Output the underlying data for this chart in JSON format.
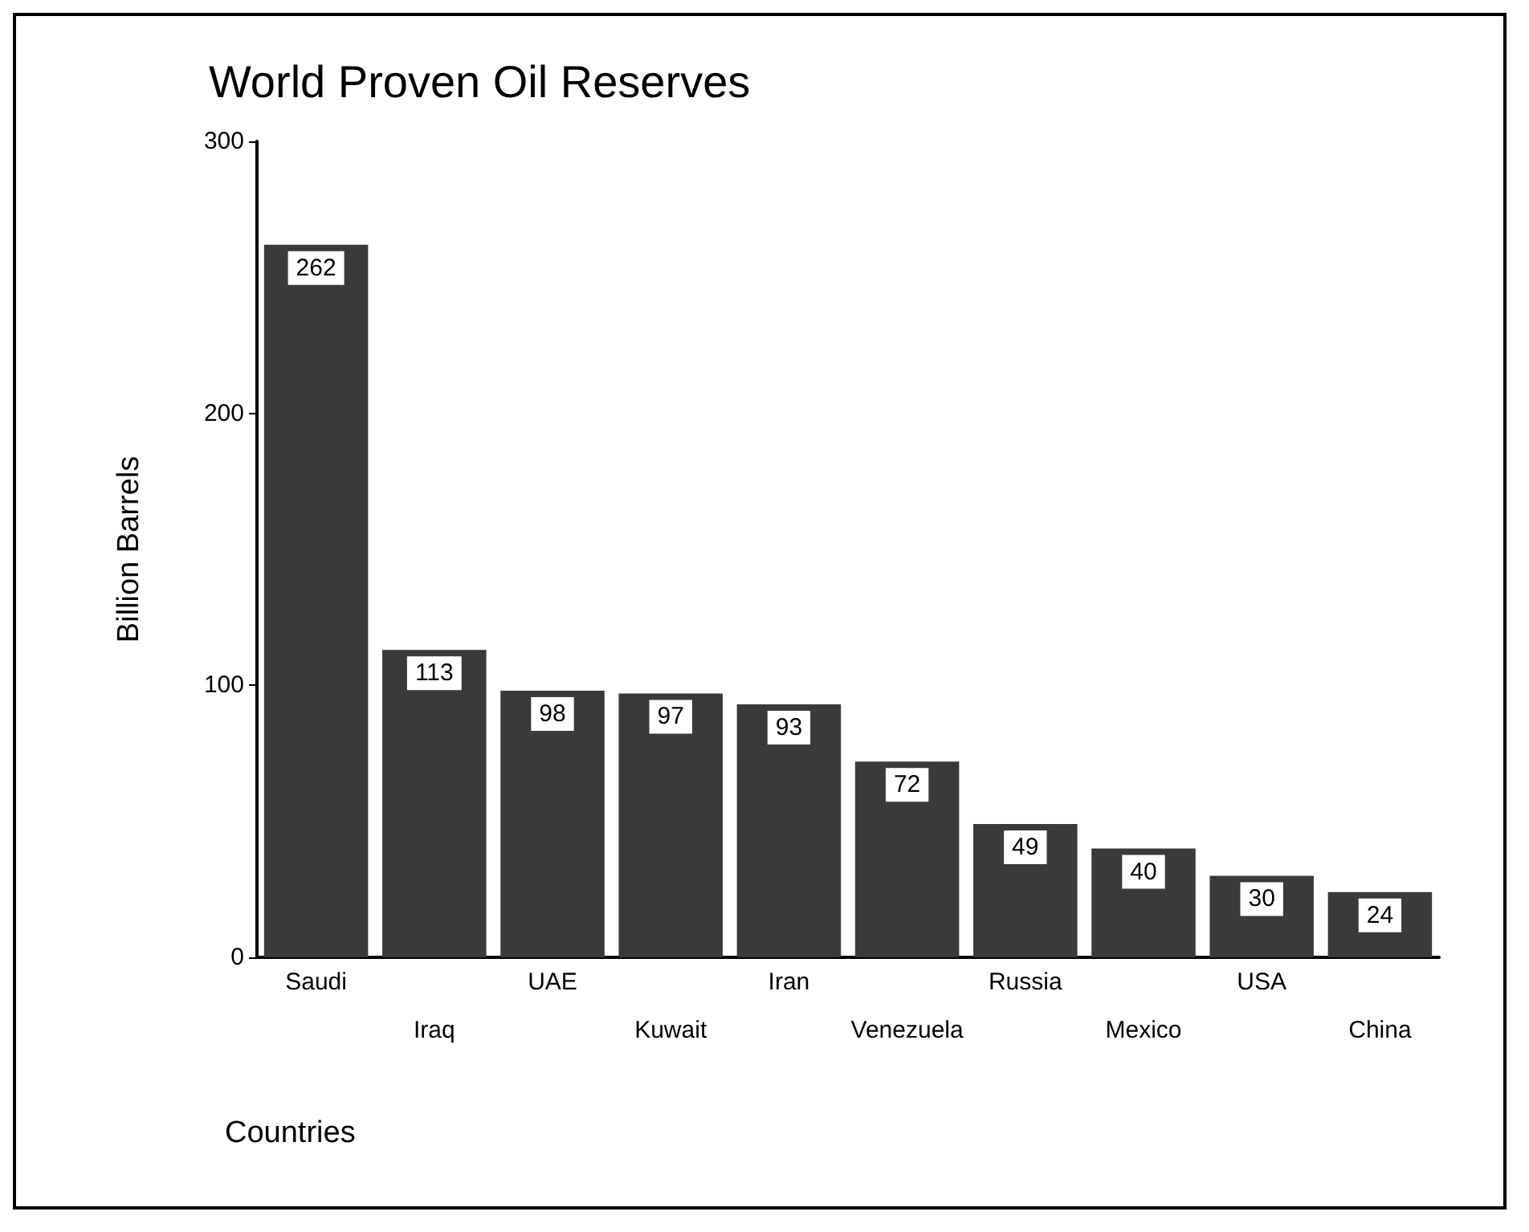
{
  "chart_data": {
    "type": "bar",
    "title": "World Proven Oil Reserves",
    "xlabel": "Countries",
    "ylabel": "Billion Barrels",
    "categories": [
      "Saudi",
      "Iraq",
      "UAE",
      "Kuwait",
      "Iran",
      "Venezuela",
      "Russia",
      "Mexico",
      "USA",
      "China"
    ],
    "values": [
      262,
      113,
      98,
      97,
      93,
      72,
      49,
      40,
      30,
      24
    ],
    "color": "#3a3a3a",
    "ylim": [
      0,
      300
    ],
    "yticks": [
      0,
      100,
      200,
      300
    ],
    "grid": false,
    "data_labels": true
  }
}
